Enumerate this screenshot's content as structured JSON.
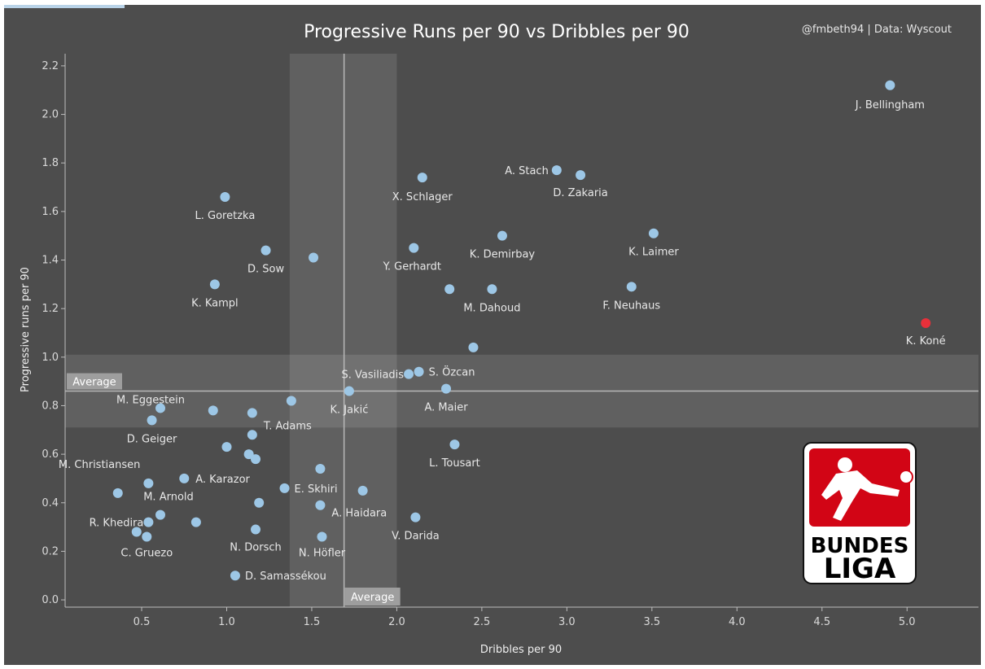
{
  "chart_data": {
    "type": "scatter",
    "title": "Progressive Runs per 90 vs Dribbles per 90",
    "credit": "@fmbeth94 | Data: Wyscout",
    "xlabel": "Dribbles per 90",
    "ylabel": "Progressive runs per 90",
    "xlim": [
      0.05,
      5.42
    ],
    "ylim": [
      -0.03,
      2.25
    ],
    "xticks": [
      "0.5",
      "1.0",
      "1.5",
      "2.0",
      "2.5",
      "3.0",
      "3.5",
      "4.0",
      "4.5",
      "5.0"
    ],
    "yticks": [
      "0.0",
      "0.2",
      "0.4",
      "0.6",
      "0.8",
      "1.0",
      "1.2",
      "1.4",
      "1.6",
      "1.8",
      "2.0",
      "2.2"
    ],
    "grid": false,
    "average": {
      "x": 1.69,
      "y": 0.86,
      "label": "Average"
    },
    "bands": {
      "x": [
        1.37,
        2.0
      ],
      "y": [
        0.71,
        1.01
      ]
    },
    "colors": {
      "point": "#9dc7e6",
      "highlight": "#e8303a",
      "background": "#4d4d4d"
    },
    "points": [
      {
        "x": 4.9,
        "y": 2.12,
        "label": "J. Bellingham"
      },
      {
        "x": 5.11,
        "y": 1.14,
        "label": "K. Koné",
        "highlight": true
      },
      {
        "x": 2.94,
        "y": 1.77,
        "label": "A. Stach"
      },
      {
        "x": 3.08,
        "y": 1.75,
        "label": "D. Zakaria"
      },
      {
        "x": 2.15,
        "y": 1.74,
        "label": "X. Schlager"
      },
      {
        "x": 0.99,
        "y": 1.66,
        "label": "L. Goretzka"
      },
      {
        "x": 2.62,
        "y": 1.5,
        "label": "K. Demirbay"
      },
      {
        "x": 3.51,
        "y": 1.51,
        "label": "K. Laimer"
      },
      {
        "x": 2.1,
        "y": 1.45,
        "label": "Y. Gerhardt"
      },
      {
        "x": 1.23,
        "y": 1.44,
        "label": "D. Sow"
      },
      {
        "x": 1.51,
        "y": 1.41,
        "label": ""
      },
      {
        "x": 0.93,
        "y": 1.3,
        "label": "K. Kampl"
      },
      {
        "x": 2.31,
        "y": 1.28,
        "label": ""
      },
      {
        "x": 2.56,
        "y": 1.28,
        "label": "M. Dahoud"
      },
      {
        "x": 3.38,
        "y": 1.29,
        "label": "F. Neuhaus"
      },
      {
        "x": 2.45,
        "y": 1.04,
        "label": ""
      },
      {
        "x": 2.07,
        "y": 0.93,
        "label": "S. Vasiliadis"
      },
      {
        "x": 2.13,
        "y": 0.94,
        "label": "S. Özcan"
      },
      {
        "x": 2.29,
        "y": 0.87,
        "label": "A. Maier"
      },
      {
        "x": 1.72,
        "y": 0.86,
        "label": "K. Jakić"
      },
      {
        "x": 1.38,
        "y": 0.82,
        "label": ""
      },
      {
        "x": 0.61,
        "y": 0.79,
        "label": "M. Eggestein"
      },
      {
        "x": 0.92,
        "y": 0.78,
        "label": ""
      },
      {
        "x": 1.15,
        "y": 0.77,
        "label": "T. Adams"
      },
      {
        "x": 0.56,
        "y": 0.74,
        "label": "D. Geiger"
      },
      {
        "x": 1.15,
        "y": 0.68,
        "label": ""
      },
      {
        "x": 2.34,
        "y": 0.64,
        "label": "L. Tousart"
      },
      {
        "x": 1.0,
        "y": 0.63,
        "label": ""
      },
      {
        "x": 1.13,
        "y": 0.6,
        "label": ""
      },
      {
        "x": 1.17,
        "y": 0.58,
        "label": ""
      },
      {
        "x": 1.55,
        "y": 0.54,
        "label": ""
      },
      {
        "x": 0.75,
        "y": 0.5,
        "label": "A. Karazor"
      },
      {
        "x": 0.54,
        "y": 0.48,
        "label": "M. Christiansen"
      },
      {
        "x": 1.34,
        "y": 0.46,
        "label": "E. Skhiri"
      },
      {
        "x": 1.8,
        "y": 0.45,
        "label": ""
      },
      {
        "x": 0.36,
        "y": 0.44,
        "label": ""
      },
      {
        "x": 1.19,
        "y": 0.4,
        "label": ""
      },
      {
        "x": 1.55,
        "y": 0.39,
        "label": "A. Haidara"
      },
      {
        "x": 0.61,
        "y": 0.35,
        "label": "M. Arnold"
      },
      {
        "x": 2.11,
        "y": 0.34,
        "label": "V. Darida"
      },
      {
        "x": 0.54,
        "y": 0.32,
        "label": "R. Khedira"
      },
      {
        "x": 0.82,
        "y": 0.32,
        "label": ""
      },
      {
        "x": 1.17,
        "y": 0.29,
        "label": "N. Dorsch"
      },
      {
        "x": 0.47,
        "y": 0.28,
        "label": ""
      },
      {
        "x": 0.53,
        "y": 0.26,
        "label": "C. Gruezo"
      },
      {
        "x": 1.56,
        "y": 0.26,
        "label": "N. Höfler"
      },
      {
        "x": 1.05,
        "y": 0.1,
        "label": "D. Samassékou"
      }
    ]
  },
  "logo": {
    "line1": "BUNDES",
    "line2": "LIGA",
    "colors": {
      "red": "#d20515",
      "black": "#000000",
      "white": "#ffffff"
    }
  }
}
